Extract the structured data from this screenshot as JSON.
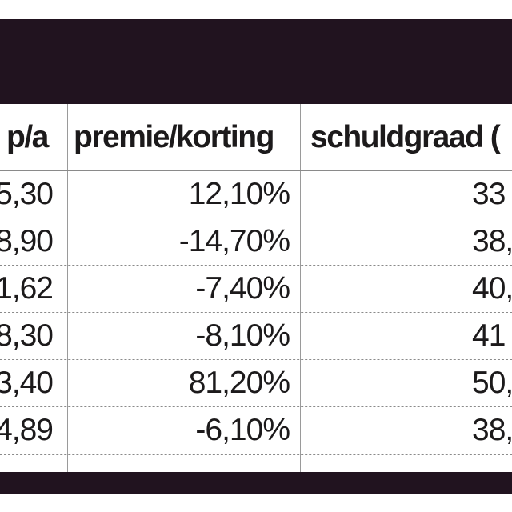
{
  "table": {
    "headers": [
      "p/a",
      "premie/korting",
      "schuldgraad ("
    ],
    "rows": [
      [
        "5,30",
        "12,10%",
        "33"
      ],
      [
        "8,90",
        "-14,70%",
        "38,"
      ],
      [
        "1,62",
        "-7,40%",
        "40,"
      ],
      [
        "8,30",
        "-8,10%",
        "41"
      ],
      [
        "3,40",
        "81,20%",
        "50,"
      ],
      [
        "4,89",
        "-6,10%",
        "38,"
      ]
    ]
  },
  "colors": {
    "band": "#21131f",
    "text": "#1c1a1b",
    "rule": "#8a8a8a"
  }
}
